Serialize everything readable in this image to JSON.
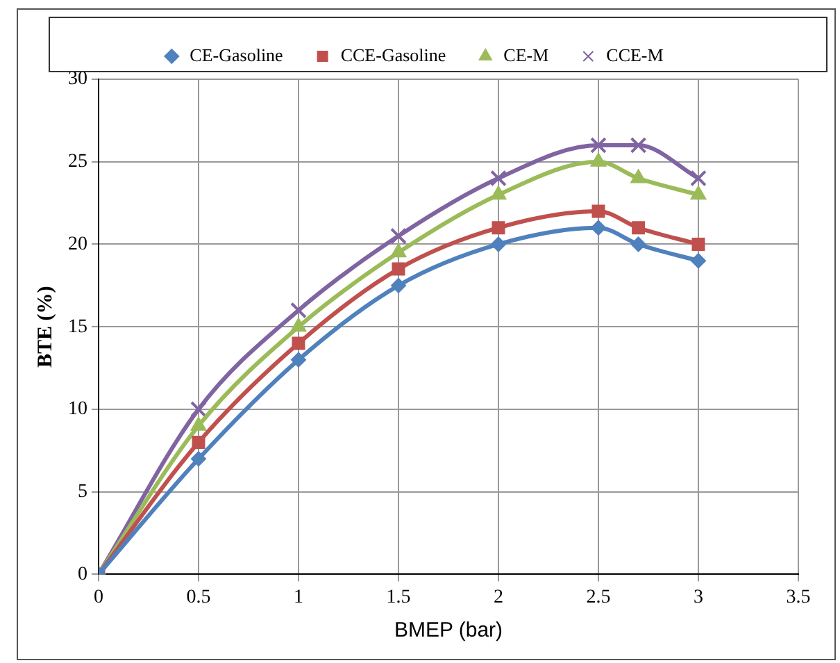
{
  "chart_data": {
    "type": "line",
    "xlabel": "BMEP (bar)",
    "ylabel": "BTE (%)",
    "xlim": [
      0,
      3.5
    ],
    "xticks": [
      0,
      0.5,
      1,
      1.5,
      2,
      2.5,
      3,
      3.5
    ],
    "ylim": [
      0,
      30
    ],
    "yticks": [
      0,
      5,
      10,
      15,
      20,
      25,
      30
    ],
    "grid": true,
    "legend": "top",
    "x": [
      0,
      0.5,
      1,
      1.5,
      2,
      2.5,
      2.7,
      3
    ],
    "series": [
      {
        "name": "CE-Gasoline",
        "color": "#4f81bd",
        "marker": "diamond",
        "values": [
          0,
          7,
          13,
          17.5,
          20,
          21,
          20,
          19
        ]
      },
      {
        "name": "CCE-Gasoline",
        "color": "#c0504d",
        "marker": "square",
        "values": [
          0,
          8,
          14,
          18.5,
          21,
          22,
          21,
          20
        ]
      },
      {
        "name": "CE-M",
        "color": "#9bbb59",
        "marker": "triangle",
        "values": [
          0,
          9,
          15,
          19.5,
          23,
          25,
          24,
          23
        ]
      },
      {
        "name": "CCE-M",
        "color": "#8064a2",
        "marker": "cross",
        "values": [
          0,
          10,
          16,
          20.5,
          24,
          26,
          26,
          24
        ]
      }
    ]
  }
}
